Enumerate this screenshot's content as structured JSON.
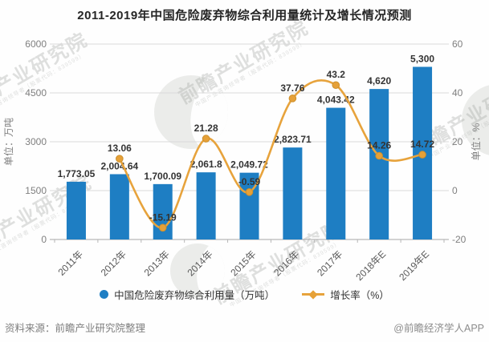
{
  "chart_data": {
    "type": "combo",
    "title": "2011-2019年中国危险废弃物综合利用量统计及增长情况预测",
    "categories": [
      "2011年",
      "2012年",
      "2013年",
      "2014年",
      "2015年",
      "2016年",
      "2017年",
      "2018年E",
      "2019年E"
    ],
    "series": [
      {
        "name": "中国危险废弃物综合利用量（万吨）",
        "type": "bar",
        "axis": "left",
        "color": "#1e7ec3",
        "values": [
          1773.05,
          2004.64,
          1700.09,
          2061.8,
          2049.72,
          2823.71,
          4043.42,
          4620,
          5300
        ],
        "labels": [
          "1,773.05",
          "2,004.64",
          "1,700.09",
          "2,061.8",
          "2,049.72",
          "2,823.71",
          "4,043.42",
          "4,620",
          "5,300"
        ]
      },
      {
        "name": "增长率（%）",
        "type": "line",
        "axis": "right",
        "color": "#e7a33c",
        "marker_color": "#e6a138",
        "marker_stroke": "#cd8f2c",
        "values": [
          null,
          13.06,
          -15.19,
          21.28,
          -0.59,
          37.76,
          43.2,
          14.26,
          14.72
        ],
        "labels": [
          "",
          "13.06",
          "-15.19",
          "21.28",
          "-0.59",
          "37.76",
          "43.2",
          "14.26",
          "14.72"
        ]
      }
    ],
    "left_axis": {
      "title": "单位：万吨",
      "min": 0,
      "max": 6000,
      "ticks": [
        0,
        1500,
        3000,
        4500,
        6000
      ],
      "tick_labels": [
        "0",
        "1500",
        "3000",
        "4500",
        "6000"
      ]
    },
    "right_axis": {
      "title": "单位：%",
      "min": -20,
      "max": 60,
      "ticks": [
        -20,
        0,
        20,
        40,
        60
      ],
      "tick_labels": [
        "-20",
        "0",
        "20",
        "40",
        "60"
      ]
    },
    "grid": true,
    "legend_position": "bottom",
    "label_color": "#333333",
    "axis_text_color": "#7f7f7f",
    "gridline_color": "#d9d9d9",
    "baseline_color": "#a6a6a6"
  },
  "footer": {
    "source": "资料来源：前瞻产业研究院整理",
    "credit": "@前瞻经济学人APP"
  },
  "watermark": {
    "text": "前瞻产业研究院",
    "subtext": "中国产业咨询领导者（股票代码：839599）"
  }
}
